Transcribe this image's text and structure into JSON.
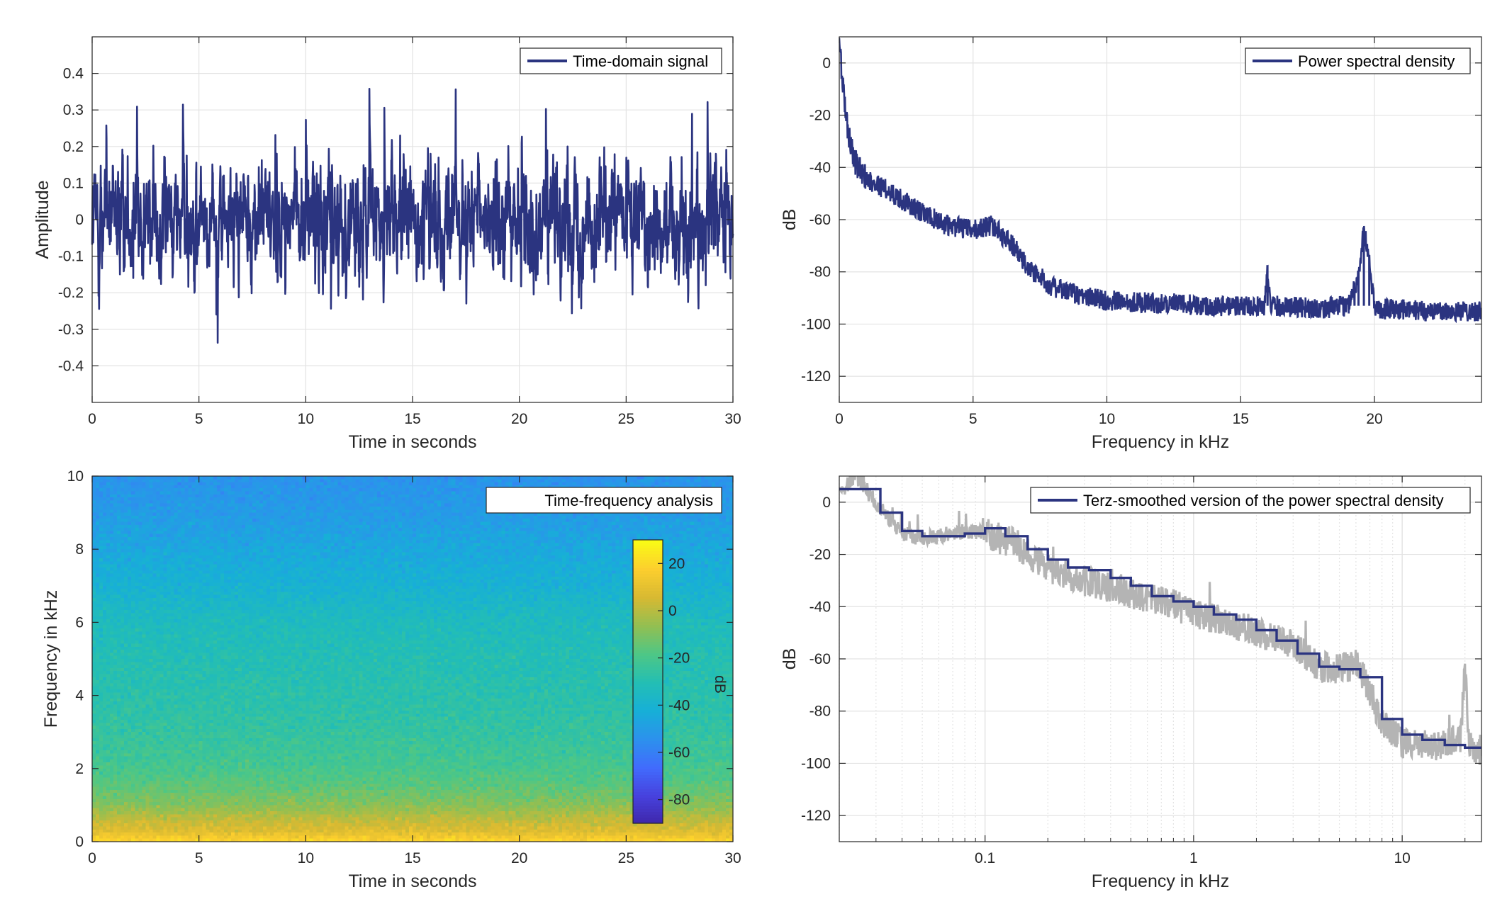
{
  "colors": {
    "signal": "#2b3480",
    "smoothed_gray": "#b4b4b4",
    "grid": "#e3e3e3",
    "axes": "#262626"
  },
  "icons": [],
  "chart_data": [
    {
      "id": "time-signal",
      "type": "line",
      "legend": "Time-domain signal",
      "xlabel": "Time in seconds",
      "ylabel": "Amplitude",
      "xlim": [
        0,
        30
      ],
      "ylim": [
        -0.5,
        0.5
      ],
      "xticks": [
        0,
        5,
        10,
        15,
        20,
        25,
        30
      ],
      "yticks": [
        -0.4,
        -0.3,
        -0.2,
        -0.1,
        0,
        0.1,
        0.2,
        0.3,
        0.4
      ],
      "ytick_labels": [
        "-0.4",
        "-0.3",
        "-0.2",
        "-0.1",
        "0",
        "0.1",
        "0.2",
        "0.3",
        "0.4"
      ],
      "grid": true,
      "legend_position": "top-right",
      "series": [
        {
          "values_approx": {
            "typical_range": [
              -0.2,
              0.2
            ],
            "max": 0.4,
            "min": -0.41
          }
        }
      ]
    },
    {
      "id": "psd",
      "type": "line",
      "legend": "Power spectral density",
      "xlabel": "Frequency in kHz",
      "ylabel": "dB",
      "xlim": [
        0,
        24
      ],
      "ylim": [
        -130,
        10
      ],
      "xticks": [
        0,
        5,
        10,
        15,
        20
      ],
      "yticks": [
        0,
        -20,
        -40,
        -60,
        -80,
        -100,
        -120
      ],
      "grid": true,
      "legend_position": "top-right",
      "series": [
        {
          "x": [
            0,
            0.1,
            0.3,
            0.6,
            1,
            2,
            3,
            4,
            5,
            5.7,
            6.5,
            7,
            8,
            9,
            10,
            12,
            14,
            15.9,
            16,
            16.1,
            18,
            19,
            19.4,
            19.6,
            19.8,
            20,
            22,
            24
          ],
          "y": [
            10,
            -5,
            -25,
            -38,
            -44,
            -50,
            -57,
            -62,
            -64,
            -62,
            -70,
            -78,
            -86,
            -89,
            -91,
            -92,
            -93,
            -93,
            -78,
            -93,
            -94,
            -93,
            -82,
            -64,
            -75,
            -94,
            -95,
            -95
          ]
        }
      ]
    },
    {
      "id": "spectrogram",
      "type": "heatmap",
      "legend": "Time-frequency analysis",
      "xlabel": "Time in seconds",
      "ylabel": "Frequency in kHz",
      "xlim": [
        0,
        30
      ],
      "ylim": [
        0,
        10
      ],
      "xticks": [
        0,
        5,
        10,
        15,
        20,
        25,
        30
      ],
      "yticks": [
        0,
        2,
        4,
        6,
        8,
        10
      ],
      "colorbar": {
        "label": "dB",
        "ticks": [
          20,
          0,
          -20,
          -40,
          -60,
          -80
        ],
        "range": [
          -90,
          30
        ],
        "colormap": "parula"
      },
      "values_db_by_frequency": {
        "freq_khz": [
          0,
          0.3,
          0.6,
          1,
          1.5,
          2,
          3,
          4,
          5,
          6,
          7,
          8,
          9,
          10
        ],
        "db": [
          20,
          8,
          2,
          -8,
          -15,
          -20,
          -25,
          -28,
          -30,
          -33,
          -40,
          -45,
          -50,
          -53
        ]
      }
    },
    {
      "id": "terz",
      "type": "line",
      "legend": "Terz-smoothed version of the power spectral density",
      "xlabel": "Frequency in kHz",
      "ylabel": "dB",
      "xscale": "log",
      "xlim": [
        0.02,
        24
      ],
      "ylim": [
        -130,
        10
      ],
      "xticks": [
        0.1,
        1,
        10
      ],
      "xtick_labels": [
        "0.1",
        "1",
        "10"
      ],
      "yticks": [
        0,
        -20,
        -40,
        -60,
        -80,
        -100,
        -120
      ],
      "grid": true,
      "legend_position": "top-right",
      "series": [
        {
          "name": "Terz-smoothed version of the power spectral density",
          "x": [
            0.02,
            0.025,
            0.0315,
            0.04,
            0.05,
            0.063,
            0.08,
            0.1,
            0.125,
            0.16,
            0.2,
            0.25,
            0.315,
            0.4,
            0.5,
            0.63,
            0.8,
            1,
            1.25,
            1.6,
            2,
            2.5,
            3.15,
            4,
            5,
            6.3,
            8,
            10,
            12.5,
            16,
            20,
            24
          ],
          "y": [
            5,
            5,
            -4,
            -11,
            -13,
            -13,
            -12,
            -10,
            -13,
            -18,
            -22,
            -25,
            -26,
            -29,
            -32,
            -36,
            -38,
            -40,
            -43,
            -45,
            -49,
            -53,
            -58,
            -63,
            -64,
            -67,
            -83,
            -89,
            -91,
            -93,
            -94,
            -94
          ]
        },
        {
          "name": "",
          "x": [
            0.02,
            0.024,
            0.03,
            0.04,
            0.05,
            0.06,
            0.08,
            0.1,
            0.14,
            0.2,
            0.3,
            0.5,
            0.8,
            1,
            1.5,
            2,
            3,
            4,
            5,
            6,
            7,
            8,
            10,
            15,
            19,
            20,
            21,
            24
          ],
          "y": [
            3,
            10,
            0,
            -12,
            -14,
            -13,
            -11,
            -12,
            -16,
            -25,
            -30,
            -35,
            -39,
            -43,
            -46,
            -50,
            -55,
            -63,
            -64,
            -62,
            -72,
            -85,
            -92,
            -94,
            -90,
            -64,
            -93,
            -95
          ]
        }
      ]
    }
  ]
}
